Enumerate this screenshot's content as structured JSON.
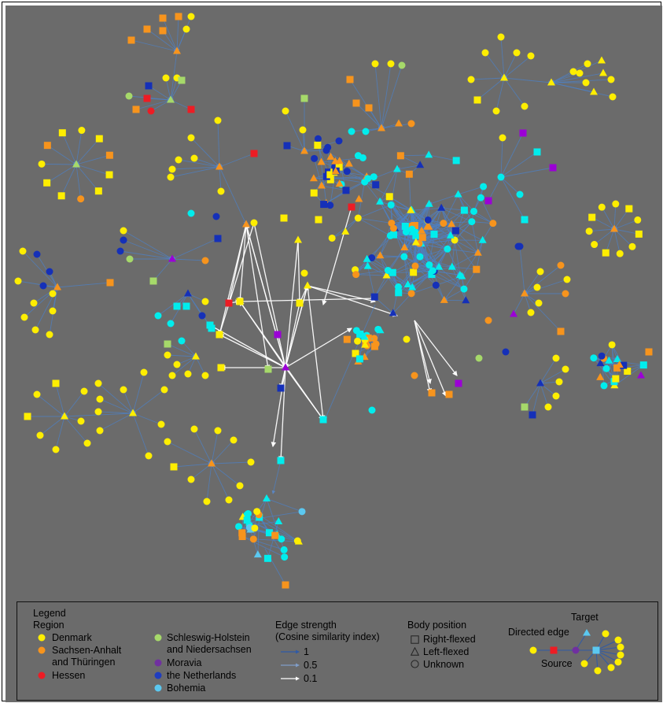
{
  "legend": {
    "title": "Legend",
    "region_title": "Region",
    "regions": [
      {
        "label": "Denmark",
        "color": "#ffee00"
      },
      {
        "label": "Sachsen-Anhalt",
        "label2": "and Thüringen",
        "color": "#f7941d"
      },
      {
        "label": "Hessen",
        "color": "#ed1c24"
      },
      {
        "label": "Schleswig-Holstein",
        "label2": "and Niedersachsen",
        "color": "#a6d96a"
      },
      {
        "label": "Moravia",
        "color": "#7030a0"
      },
      {
        "label": "the Netherlands",
        "color": "#1f3dbf"
      },
      {
        "label": "Bohemia",
        "color": "#5bc8f0"
      }
    ],
    "edge_title": "Edge strength",
    "edge_subtitle": "(Cosine similarity index)",
    "edge_levels": [
      {
        "label": "1",
        "color": "#2f5aa6"
      },
      {
        "label": "0.5",
        "color": "#7f9dc8"
      },
      {
        "label": "0.1",
        "color": "#ffffff"
      }
    ],
    "body_title": "Body position",
    "body_positions": [
      {
        "label": "Right-flexed",
        "shape": "square"
      },
      {
        "label": "Left-flexed",
        "shape": "triangle"
      },
      {
        "label": "Unknown",
        "shape": "circle"
      }
    ],
    "example": {
      "target": "Target",
      "directed_edge": "Directed edge",
      "source": "Source"
    }
  },
  "colors": {
    "background": "#6b6b6b",
    "edge_strong": "#3a6db0",
    "edge_weak": "#ffffff",
    "cyan": "#00f0f0"
  }
}
